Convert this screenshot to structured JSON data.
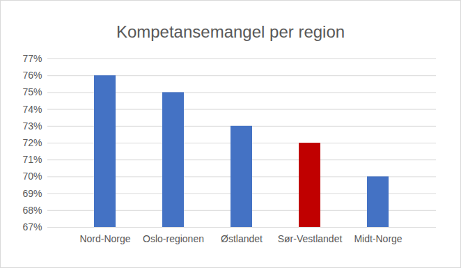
{
  "chart_data": {
    "type": "bar",
    "title": "Kompetansemangel per region",
    "categories": [
      "Nord-Norge",
      "Oslo-regionen",
      "Østlandet",
      "Sør-Vestlandet",
      "Midt-Norge"
    ],
    "values": [
      76,
      75,
      73,
      72,
      70
    ],
    "colors": [
      "#4472c4",
      "#4472c4",
      "#4472c4",
      "#c00000",
      "#4472c4"
    ],
    "ylim": [
      67,
      77
    ],
    "yticks": [
      {
        "value": 67,
        "label": "67%"
      },
      {
        "value": 68,
        "label": "68%"
      },
      {
        "value": 69,
        "label": "69%"
      },
      {
        "value": 70,
        "label": "70%"
      },
      {
        "value": 71,
        "label": "71%"
      },
      {
        "value": 72,
        "label": "72%"
      },
      {
        "value": 73,
        "label": "73%"
      },
      {
        "value": 74,
        "label": "74%"
      },
      {
        "value": 75,
        "label": "75%"
      },
      {
        "value": 76,
        "label": "76%"
      },
      {
        "value": 77,
        "label": "77%"
      }
    ],
    "grid": true
  }
}
